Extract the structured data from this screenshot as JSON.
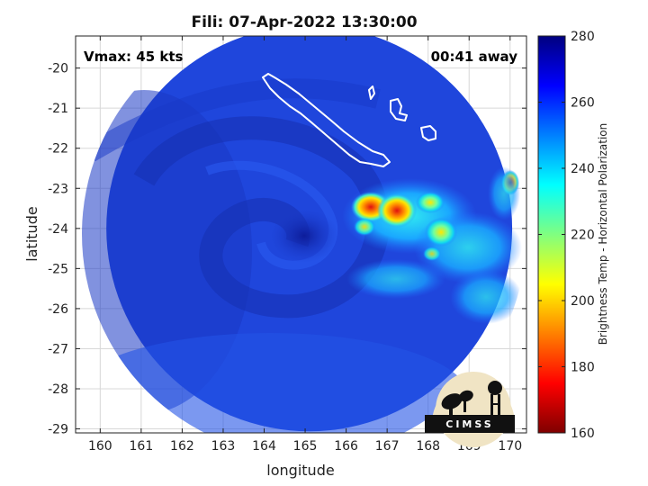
{
  "title": "Fili: 07-Apr-2022 13:30:00",
  "annotations": {
    "vmax": "Vmax: 45 kts",
    "away": "00:41 away"
  },
  "xaxis": {
    "label": "longitude",
    "range": [
      159.4,
      170.4
    ],
    "ticks": [
      160,
      161,
      162,
      163,
      164,
      165,
      166,
      167,
      168,
      169,
      170
    ]
  },
  "yaxis": {
    "label": "latitude",
    "range": [
      -29.1,
      -19.2
    ],
    "ticks": [
      -20,
      -21,
      -22,
      -23,
      -24,
      -25,
      -26,
      -27,
      -28,
      -29
    ]
  },
  "colorbar": {
    "label": "Brightness Temp - Horizontal Polarization",
    "range": [
      160,
      280
    ],
    "ticks": [
      280,
      260,
      240,
      220,
      200,
      180,
      160
    ],
    "colormap": [
      "#7f0000",
      "#ff0000",
      "#ff8000",
      "#ffff00",
      "#80ff80",
      "#00ffff",
      "#0080ff",
      "#0000ff",
      "#00007f"
    ]
  },
  "logo": {
    "text": "CIMSS"
  },
  "grid": true,
  "swath": {
    "center": [
      165.1,
      -24.0
    ],
    "radius_deg": 4.95,
    "background_temp_k": 262
  }
}
